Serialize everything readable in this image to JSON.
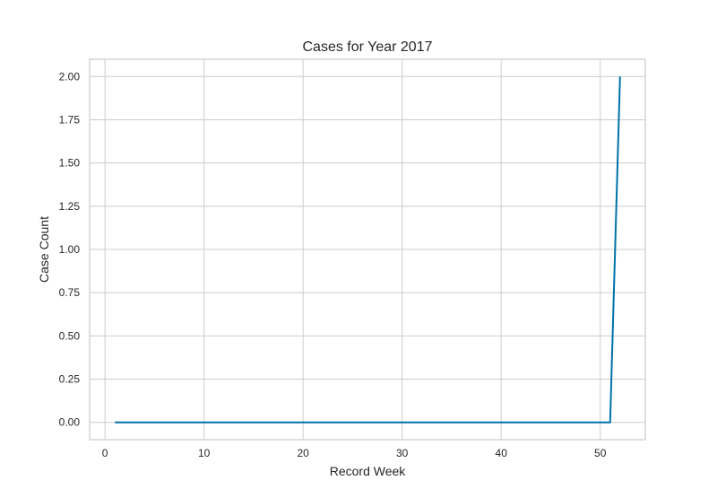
{
  "chart_data": {
    "type": "line",
    "title": "Cases for Year 2017",
    "xlabel": "Record Week",
    "ylabel": "Case Count",
    "xlim": [
      -1.55,
      54.55
    ],
    "ylim": [
      -0.1,
      2.1
    ],
    "xticks": [
      0,
      10,
      20,
      30,
      40,
      50
    ],
    "xtick_labels": [
      "0",
      "10",
      "20",
      "30",
      "40",
      "50"
    ],
    "yticks": [
      0,
      0.25,
      0.5,
      0.75,
      1.0,
      1.25,
      1.5,
      1.75,
      2.0
    ],
    "ytick_labels": [
      "0.00",
      "0.25",
      "0.50",
      "0.75",
      "1.00",
      "1.25",
      "1.50",
      "1.75",
      "2.00"
    ],
    "grid": true,
    "series": [
      {
        "color": "#0072a8",
        "x": [
          1,
          2,
          3,
          4,
          5,
          6,
          7,
          8,
          9,
          10,
          11,
          12,
          13,
          14,
          15,
          16,
          17,
          18,
          19,
          20,
          21,
          22,
          23,
          24,
          25,
          26,
          27,
          28,
          29,
          30,
          31,
          32,
          33,
          34,
          35,
          36,
          37,
          38,
          39,
          40,
          41,
          42,
          43,
          44,
          45,
          46,
          47,
          48,
          49,
          50,
          51,
          52
        ],
        "y": [
          0,
          0,
          0,
          0,
          0,
          0,
          0,
          0,
          0,
          0,
          0,
          0,
          0,
          0,
          0,
          0,
          0,
          0,
          0,
          0,
          0,
          0,
          0,
          0,
          0,
          0,
          0,
          0,
          0,
          0,
          0,
          0,
          0,
          0,
          0,
          0,
          0,
          0,
          0,
          0,
          0,
          0,
          0,
          0,
          0,
          0,
          0,
          0,
          0,
          0,
          0,
          2
        ]
      }
    ]
  }
}
